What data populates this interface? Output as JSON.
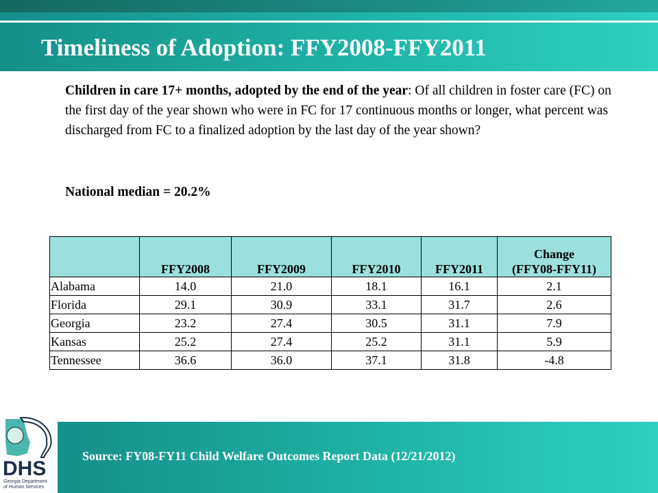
{
  "slide": {
    "title": "Timeliness of Adoption: FFY2008-FFY2011",
    "description_lead": "Children in care 17+ months, adopted by the end of the year",
    "description_body": ": Of all children in foster care (FC) on the first day of the year shown who were in FC for 17 continuous months or longer, what percent was discharged from FC to a finalized adoption by the last day of the year shown?",
    "national_median": "National median = 20.2%",
    "source": "Source:  FY08-FY11 Child Welfare Outcomes Report Data (12/21/2012)"
  },
  "logo": {
    "name": "DHS",
    "subtitle_line1": "Georgia Department",
    "subtitle_line2": "of Human Services"
  },
  "table": {
    "headers": [
      "",
      "FFY2008",
      "FFY2009",
      "FFY2010",
      "FFY2011",
      "Change (FFY08-FFY11)"
    ],
    "header_change_line1": "Change",
    "header_change_line2": "(FFY08-FFY11)",
    "rows": [
      [
        "Alabama",
        "14.0",
        "21.0",
        "18.1",
        "16.1",
        "2.1"
      ],
      [
        "Florida",
        "29.1",
        "30.9",
        "33.1",
        "31.7",
        "2.6"
      ],
      [
        "Georgia",
        "23.2",
        "27.4",
        "30.5",
        "31.1",
        "7.9"
      ],
      [
        "Kansas",
        "25.2",
        "27.4",
        "25.2",
        "31.1",
        "5.9"
      ],
      [
        "Tennessee",
        "36.6",
        "36.0",
        "37.1",
        "31.8",
        "-4.8"
      ]
    ]
  },
  "colors": {
    "teal_band": "#1fb3a8",
    "header_fill": "#9be0dc",
    "logo_navy": "#1c2f45"
  }
}
